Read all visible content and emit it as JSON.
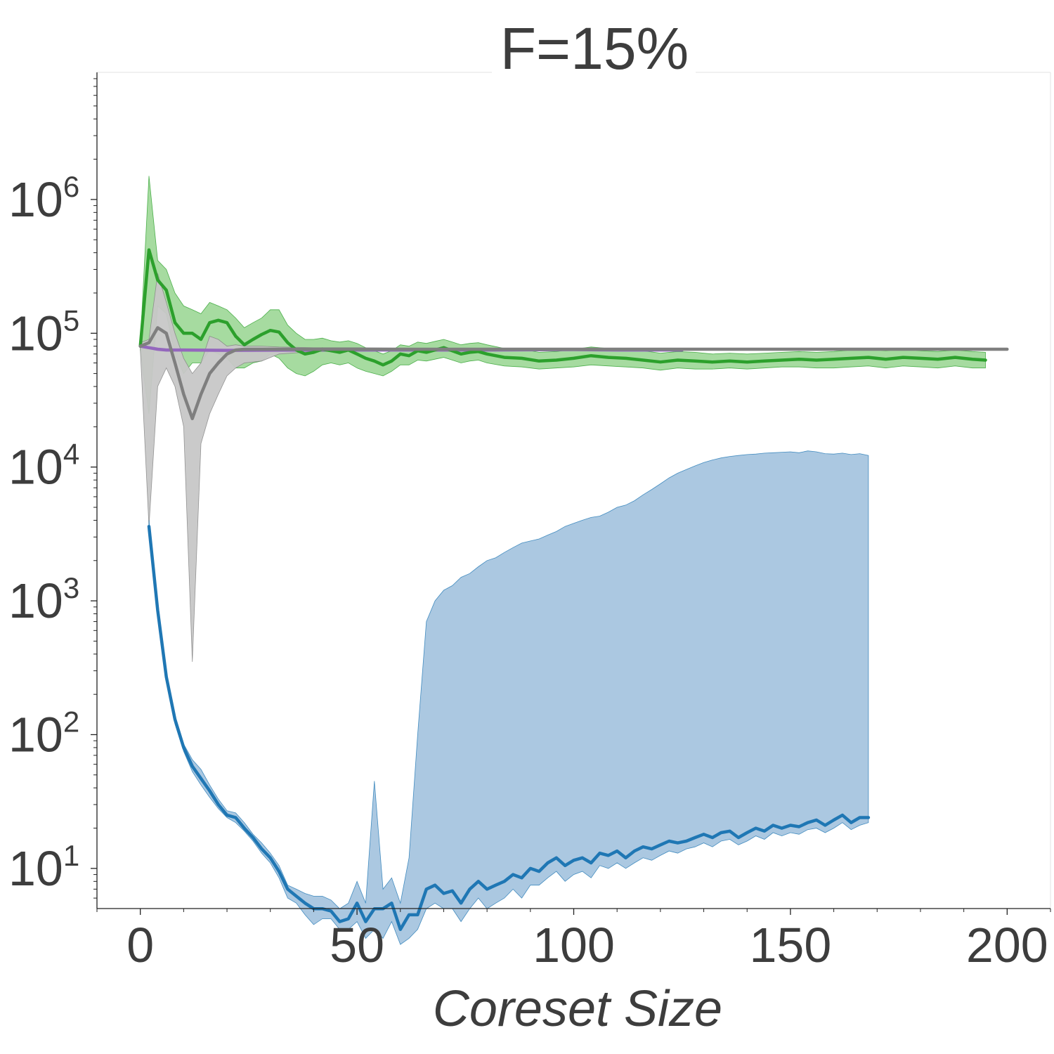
{
  "chart_data": {
    "type": "line",
    "title": "F=15%",
    "xlabel": "Coreset Size",
    "ylabel": "",
    "xlim": [
      -10,
      210
    ],
    "ylim_log10": [
      0.7,
      6.95
    ],
    "yscale": "log",
    "grid": false,
    "x_ticks": [
      {
        "value": 0,
        "label": "0"
      },
      {
        "value": 50,
        "label": "50"
      },
      {
        "value": 100,
        "label": "100"
      },
      {
        "value": 150,
        "label": "150"
      },
      {
        "value": 200,
        "label": "200"
      }
    ],
    "y_ticks": [
      {
        "log10": 1,
        "base": "10",
        "exp": "1"
      },
      {
        "log10": 2,
        "base": "10",
        "exp": "2"
      },
      {
        "log10": 3,
        "base": "10",
        "exp": "3"
      },
      {
        "log10": 4,
        "base": "10",
        "exp": "4"
      },
      {
        "log10": 5,
        "base": "10",
        "exp": "5"
      },
      {
        "log10": 6,
        "base": "10",
        "exp": "6"
      }
    ],
    "series": [
      {
        "color": "#9467bd",
        "band_color": "#c5b0d5",
        "x": [
          0,
          2,
          4,
          6,
          10,
          20,
          40,
          60,
          80,
          100,
          110,
          120,
          125
        ],
        "y": [
          80000,
          78000,
          76000,
          75000,
          75000,
          74500,
          75000,
          75000,
          75000,
          75500,
          75000,
          75000,
          75000
        ],
        "lower": [
          78000,
          76000,
          74000,
          73000,
          73000,
          73000,
          73500,
          73500,
          73500,
          74000,
          73500,
          73500,
          73500
        ],
        "upper": [
          82000,
          80000,
          78000,
          77000,
          77000,
          76000,
          76500,
          76500,
          76500,
          77000,
          76500,
          76500,
          76500
        ]
      },
      {
        "color": "#2ca02c",
        "band_color": "#a1d99b",
        "x": [
          0,
          2,
          4,
          6,
          8,
          10,
          12,
          14,
          16,
          18,
          20,
          22,
          24,
          26,
          28,
          30,
          32,
          34,
          36,
          38,
          40,
          42,
          44,
          46,
          48,
          50,
          52,
          54,
          56,
          58,
          60,
          62,
          64,
          66,
          68,
          70,
          72,
          74,
          76,
          78,
          80,
          84,
          88,
          92,
          96,
          100,
          104,
          108,
          112,
          116,
          120,
          124,
          128,
          132,
          136,
          140,
          144,
          148,
          152,
          156,
          160,
          164,
          168,
          172,
          176,
          180,
          184,
          188,
          192,
          195
        ],
        "y": [
          80000,
          420000,
          250000,
          210000,
          120000,
          100000,
          100000,
          90000,
          120000,
          125000,
          120000,
          95000,
          82000,
          90000,
          98000,
          105000,
          102000,
          85000,
          75000,
          70000,
          72000,
          76000,
          74000,
          72000,
          75000,
          70000,
          65000,
          62000,
          58000,
          62000,
          70000,
          68000,
          74000,
          72000,
          75000,
          78000,
          74000,
          70000,
          72000,
          73000,
          70000,
          66000,
          65000,
          62000,
          63000,
          65000,
          68000,
          66000,
          65000,
          63000,
          61000,
          63000,
          62000,
          61000,
          62000,
          61000,
          62000,
          63000,
          64000,
          63000,
          64000,
          65000,
          66000,
          64000,
          66000,
          65000,
          64000,
          66000,
          64000,
          63000
        ],
        "lower": [
          75000,
          25000,
          160000,
          140000,
          70000,
          50000,
          60000,
          60000,
          75000,
          70000,
          65000,
          55000,
          55000,
          60000,
          62000,
          70000,
          65000,
          55000,
          50000,
          48000,
          52000,
          58000,
          60000,
          58000,
          60000,
          55000,
          52000,
          50000,
          48000,
          52000,
          58000,
          58000,
          63000,
          62000,
          64000,
          66000,
          63000,
          60000,
          62000,
          63000,
          60000,
          57000,
          56000,
          54000,
          55000,
          56000,
          58000,
          57000,
          56000,
          55000,
          53000,
          55000,
          54000,
          54000,
          55000,
          54000,
          55000,
          56000,
          56000,
          55000,
          55000,
          56000,
          57000,
          55000,
          57000,
          56000,
          55000,
          57000,
          55000,
          55000
        ],
        "upper": [
          85000,
          1500000,
          350000,
          300000,
          200000,
          160000,
          150000,
          140000,
          170000,
          160000,
          150000,
          130000,
          110000,
          120000,
          130000,
          150000,
          150000,
          115000,
          100000,
          90000,
          90000,
          92000,
          88000,
          86000,
          88000,
          84000,
          78000,
          74000,
          70000,
          74000,
          82000,
          80000,
          86000,
          84000,
          87000,
          90000,
          86000,
          82000,
          84000,
          85000,
          82000,
          77000,
          76000,
          72000,
          73000,
          76000,
          79000,
          77000,
          76000,
          74000,
          71000,
          73000,
          72000,
          70000,
          71000,
          70000,
          71000,
          72000,
          73000,
          72000,
          73000,
          75000,
          76000,
          74000,
          76000,
          74000,
          73000,
          75000,
          73000,
          72000
        ]
      },
      {
        "color": "#7f7f7f",
        "band_color": "#c7c7c7",
        "x": [
          0,
          2,
          4,
          6,
          8,
          10,
          12,
          14,
          16,
          18,
          20,
          22,
          24,
          28,
          32,
          40,
          50,
          60,
          80,
          100,
          120,
          140,
          160,
          180,
          200
        ],
        "y": [
          80000,
          85000,
          110000,
          100000,
          60000,
          35000,
          23000,
          35000,
          50000,
          60000,
          70000,
          75000,
          76000,
          76000,
          76000,
          76000,
          76000,
          76000,
          76000,
          76000,
          76000,
          76000,
          76000,
          76000,
          76000
        ],
        "lower": [
          75000,
          3600,
          40000,
          55000,
          40000,
          20000,
          350,
          15000,
          25000,
          35000,
          48000,
          55000,
          60000,
          62000,
          70000,
          73000,
          74000,
          74500,
          74500,
          74500,
          74500,
          74500,
          74500,
          74500,
          74500
        ],
        "upper": [
          85000,
          90000,
          280000,
          170000,
          100000,
          65000,
          50000,
          60000,
          95000,
          90000,
          80000,
          82000,
          80000,
          80000,
          79000,
          78000,
          78000,
          77500,
          77500,
          77500,
          77500,
          77500,
          77500,
          77500,
          77500
        ]
      },
      {
        "color": "#1f77b4",
        "band_color": "#a6c5df",
        "x": [
          2,
          4,
          6,
          8,
          10,
          12,
          14,
          16,
          18,
          20,
          22,
          24,
          26,
          28,
          30,
          32,
          34,
          36,
          38,
          40,
          42,
          44,
          46,
          48,
          50,
          52,
          54,
          56,
          58,
          60,
          62,
          64,
          66,
          68,
          70,
          72,
          74,
          76,
          78,
          80,
          82,
          84,
          86,
          88,
          90,
          92,
          94,
          96,
          98,
          100,
          102,
          104,
          106,
          108,
          110,
          112,
          114,
          116,
          118,
          120,
          122,
          124,
          126,
          128,
          130,
          132,
          134,
          136,
          138,
          140,
          142,
          144,
          146,
          148,
          150,
          152,
          154,
          156,
          158,
          160,
          162,
          164,
          166,
          168
        ],
        "y": [
          3600,
          850,
          270,
          130,
          80,
          58,
          47,
          38,
          30,
          25,
          24,
          20,
          17,
          14,
          12,
          9.5,
          7.0,
          6.2,
          5.5,
          5.0,
          5.0,
          4.8,
          4.0,
          4.2,
          5.5,
          4.0,
          5.0,
          5.0,
          5.5,
          3.5,
          4.5,
          4.5,
          7.0,
          7.5,
          6.5,
          6.8,
          5.5,
          7.0,
          8.0,
          7.0,
          7.5,
          8.0,
          9.0,
          8.5,
          10.0,
          9.5,
          11.0,
          12.0,
          10.5,
          11.5,
          12.0,
          11.0,
          13.0,
          12.5,
          13.5,
          12.0,
          13.5,
          14.5,
          14.0,
          15.0,
          16.0,
          15.5,
          16.0,
          17.0,
          18.0,
          17.0,
          18.5,
          19.0,
          17.0,
          18.5,
          20.0,
          19.0,
          21.0,
          20.0,
          21.0,
          20.5,
          22.0,
          23.0,
          21.0,
          23.0,
          25.0,
          22.0,
          24.0,
          24.0
        ],
        "lower": [
          3200,
          800,
          250,
          120,
          75,
          53,
          42,
          34,
          28,
          24,
          22,
          19,
          16,
          13,
          11,
          8.5,
          6.0,
          5.5,
          4.5,
          3.8,
          4.2,
          4.2,
          3.5,
          3.5,
          4.0,
          3.0,
          3.5,
          3.0,
          4.0,
          2.7,
          3.0,
          3.5,
          5.0,
          5.5,
          5.0,
          5.0,
          4.0,
          5.0,
          6.0,
          5.0,
          5.5,
          6.0,
          7.0,
          6.0,
          7.5,
          7.5,
          8.5,
          9.5,
          8.0,
          9.0,
          9.5,
          8.5,
          10.5,
          10.0,
          11.0,
          10.0,
          11.0,
          12.0,
          11.5,
          12.5,
          13.5,
          13.0,
          14.0,
          14.5,
          15.5,
          14.5,
          16.0,
          16.5,
          15.0,
          16.0,
          17.5,
          16.5,
          18.5,
          17.5,
          18.5,
          18.0,
          19.5,
          20.0,
          18.5,
          20.0,
          22.0,
          19.5,
          21.0,
          22.0
        ],
        "upper": [
          4000,
          900,
          290,
          140,
          85,
          65,
          55,
          42,
          33,
          27,
          26,
          22,
          18,
          15.5,
          13,
          10.5,
          7.5,
          7.0,
          6.5,
          6.2,
          6.2,
          5.8,
          5.0,
          5.5,
          8.0,
          5.5,
          45,
          7.0,
          8.5,
          5.5,
          12.0,
          100,
          700,
          1000,
          1200,
          1300,
          1500,
          1600,
          1800,
          2000,
          2100,
          2300,
          2500,
          2700,
          2800,
          2900,
          3100,
          3300,
          3600,
          3800,
          4000,
          4200,
          4300,
          4600,
          5000,
          5200,
          5600,
          6200,
          6800,
          7500,
          8300,
          9000,
          9600,
          10200,
          10800,
          11300,
          11700,
          12000,
          12200,
          12400,
          12500,
          12700,
          12800,
          12900,
          13000,
          12800,
          13200,
          13000,
          12600,
          12500,
          12700,
          12400,
          12600,
          12200
        ]
      }
    ]
  }
}
